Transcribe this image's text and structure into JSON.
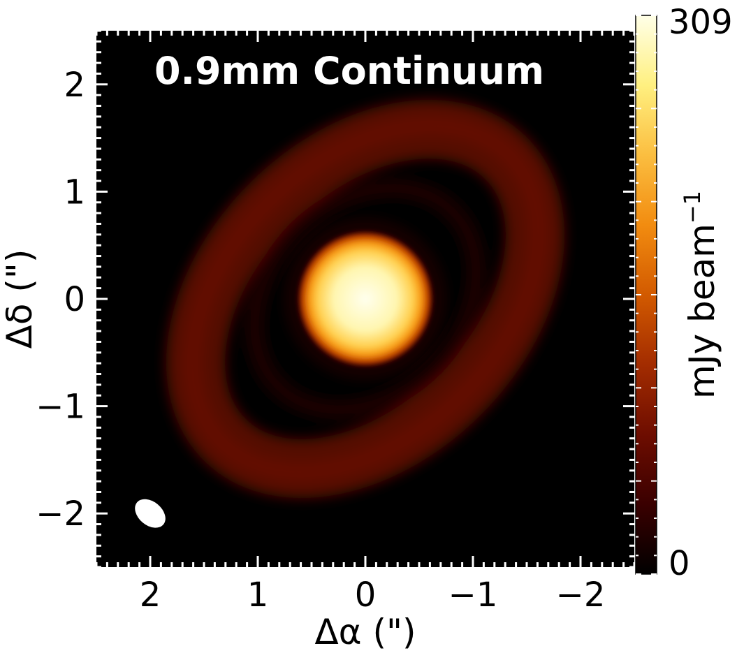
{
  "chart_data": {
    "type": "heatmap",
    "title": "0.9mm Continuum",
    "xlabel": "Δα (\")",
    "ylabel": "Δδ (\")",
    "xlim": [
      2.5,
      -2.5
    ],
    "ylim": [
      -2.5,
      2.5
    ],
    "x_ticks": [
      2,
      1,
      0,
      -1,
      -2
    ],
    "y_ticks": [
      -2,
      -1,
      0,
      1,
      2
    ],
    "x_tick_labels": [
      "2",
      "1",
      "0",
      "−1",
      "−2"
    ],
    "y_tick_labels": [
      "−2",
      "−1",
      "0",
      "1",
      "2"
    ],
    "colorbar": {
      "label": "mJy beam",
      "label_superscript": "−1",
      "min": 0,
      "max": 309,
      "min_label": "0",
      "max_label": "309",
      "colormap": [
        "#000000",
        "#3a0000",
        "#6e0d00",
        "#a32c00",
        "#d25a00",
        "#f28c10",
        "#fbbe40",
        "#fff080",
        "#ffffe8"
      ]
    },
    "background_color": "#000000",
    "components": [
      {
        "name": "central source",
        "x": 0.0,
        "y": 0.0,
        "radius": 0.6,
        "peak": 309
      },
      {
        "name": "outer ring",
        "x": 0.0,
        "y": 0.0,
        "semi_major": 1.85,
        "semi_minor": 1.25,
        "position_angle_deg": 45,
        "brightness": 45
      },
      {
        "name": "beam",
        "x": 2.0,
        "y": -2.0,
        "major": 0.32,
        "minor": 0.22,
        "position_angle_deg": 40
      }
    ]
  }
}
